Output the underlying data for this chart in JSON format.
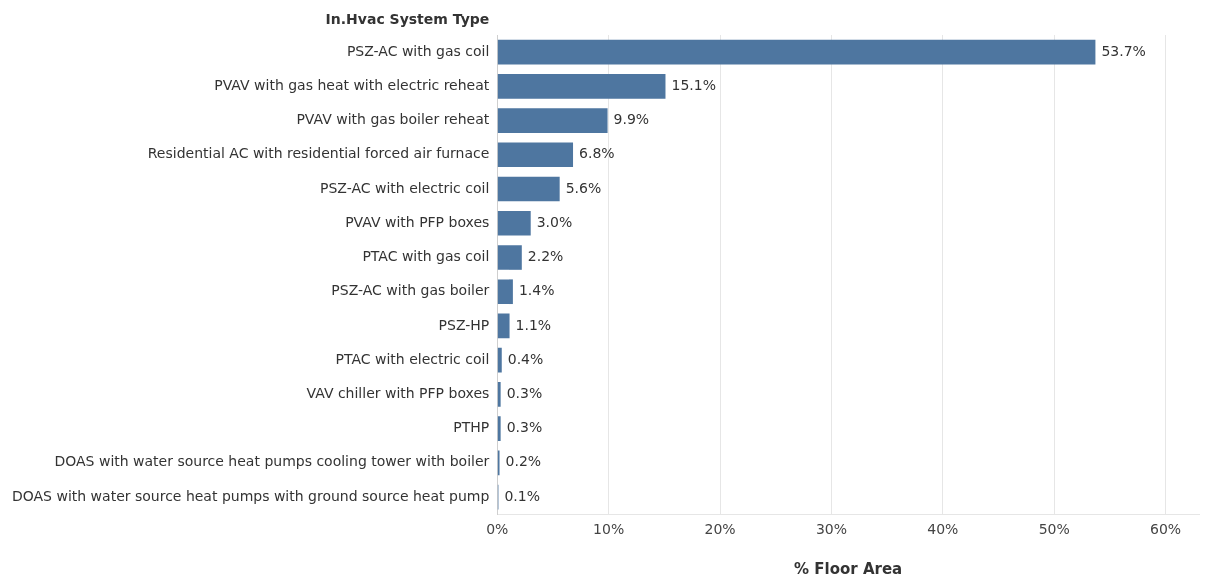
{
  "chart_data": {
    "type": "bar",
    "orientation": "horizontal",
    "ylabel": "In.Hvac System Type",
    "xlabel": "% Floor Area",
    "categories": [
      "PSZ-AC with gas coil",
      "PVAV with gas heat with electric reheat",
      "PVAV with gas boiler reheat",
      "Residential AC with residential forced air furnace",
      "PSZ-AC with electric coil",
      "PVAV with PFP boxes",
      "PTAC with gas coil",
      "PSZ-AC with gas boiler",
      "PSZ-HP",
      "PTAC with electric coil",
      "VAV chiller with PFP boxes",
      "PTHP",
      "DOAS with water source heat pumps cooling tower with boiler",
      "DOAS with water source heat pumps with ground source heat pump"
    ],
    "values": [
      53.7,
      15.1,
      9.9,
      6.8,
      5.6,
      3.0,
      2.2,
      1.4,
      1.1,
      0.4,
      0.3,
      0.3,
      0.2,
      0.1
    ],
    "value_labels": [
      "53.7%",
      "15.1%",
      "9.9%",
      "6.8%",
      "5.6%",
      "3.0%",
      "2.2%",
      "1.4%",
      "1.1%",
      "0.4%",
      "0.3%",
      "0.3%",
      "0.2%",
      "0.1%"
    ],
    "color": "#4e76a0",
    "xlim": [
      0,
      63
    ],
    "xticks": [
      {
        "value": 0,
        "label": "0%"
      },
      {
        "value": 10,
        "label": "10%"
      },
      {
        "value": 20,
        "label": "20%"
      },
      {
        "value": 30,
        "label": "30%"
      },
      {
        "value": 40,
        "label": "40%"
      },
      {
        "value": 50,
        "label": "50%"
      },
      {
        "value": 60,
        "label": "60%"
      }
    ],
    "grid": "x",
    "legend": false
  }
}
